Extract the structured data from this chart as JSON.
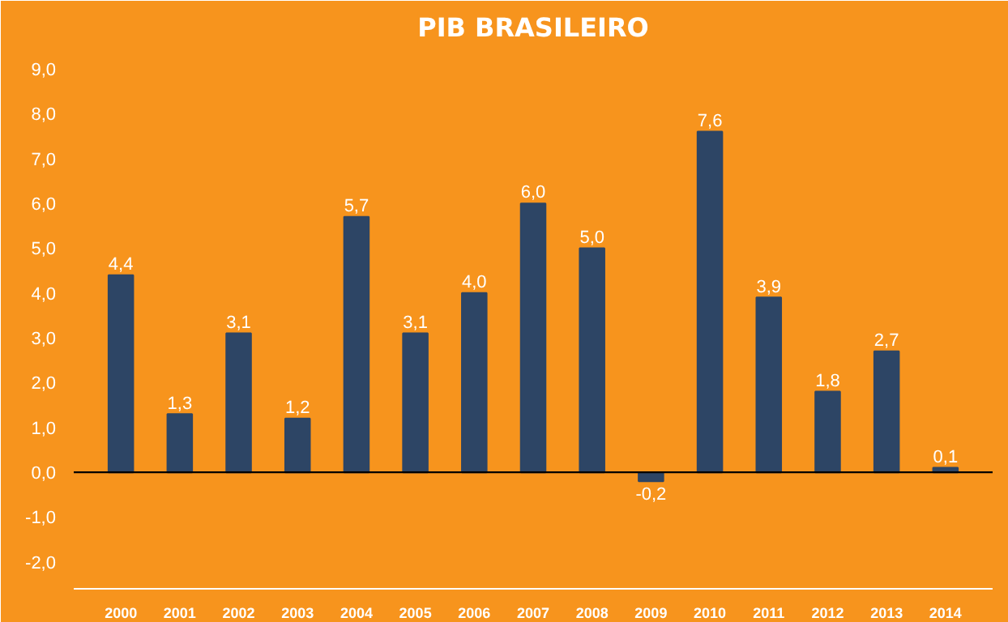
{
  "chart_data": {
    "type": "bar",
    "title": "PIB BRASILEIRO",
    "categories": [
      "2000",
      "2001",
      "2002",
      "2003",
      "2004",
      "2005",
      "2006",
      "2007",
      "2008",
      "2009",
      "2010",
      "2011",
      "2012",
      "2013",
      "2014"
    ],
    "values": [
      4.4,
      1.3,
      3.1,
      1.2,
      5.7,
      3.1,
      4.0,
      6.0,
      5.0,
      -0.2,
      7.6,
      3.9,
      1.8,
      2.7,
      0.1
    ],
    "value_labels": [
      "4,4",
      "1,3",
      "3,1",
      "1,2",
      "5,7",
      "3,1",
      "4,0",
      "6,0",
      "5,0",
      "-0,2",
      "7,6",
      "3,9",
      "1,8",
      "2,7",
      "0,1"
    ],
    "color": "#2d4565",
    "ylim": [
      -2.6,
      9.4
    ],
    "yticks": [
      {
        "value": 9,
        "label": "9,0"
      },
      {
        "value": 8,
        "label": "8,0"
      },
      {
        "value": 7,
        "label": "7,0"
      },
      {
        "value": 6,
        "label": "6,0"
      },
      {
        "value": 5,
        "label": "5,0"
      },
      {
        "value": 4,
        "label": "4,0"
      },
      {
        "value": 3,
        "label": "3,0"
      },
      {
        "value": 2,
        "label": "2,0"
      },
      {
        "value": 1,
        "label": "1,0"
      },
      {
        "value": 0,
        "label": "0,0"
      },
      {
        "value": -1,
        "label": "-1,0"
      },
      {
        "value": -2,
        "label": "-2,0"
      }
    ],
    "ref_lines": [
      {
        "axis": "y",
        "value": 0,
        "color": "#000000"
      }
    ],
    "grid": false
  }
}
